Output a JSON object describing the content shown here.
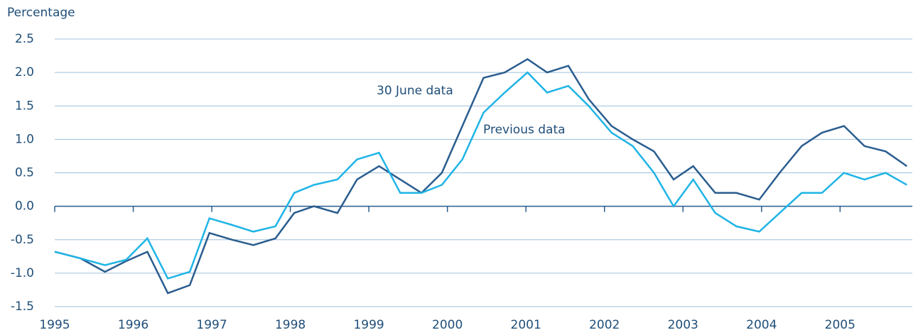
{
  "chart_data": {
    "type": "line",
    "y_label": "Percentage",
    "annotations": [
      "30 June data",
      "Previous data"
    ],
    "x": [
      1995.0,
      1995.33,
      1995.64,
      1995.91,
      1996.18,
      1996.44,
      1996.72,
      1996.97,
      1997.26,
      1997.53,
      1997.81,
      1998.05,
      1998.3,
      1998.6,
      1998.85,
      1999.13,
      1999.4,
      1999.67,
      1999.93,
      2000.19,
      2000.46,
      2000.73,
      2001.02,
      2001.27,
      2001.54,
      2001.8,
      2002.09,
      2002.36,
      2002.63,
      2002.88,
      2003.13,
      2003.41,
      2003.68,
      2003.97,
      2004.23,
      2004.51,
      2004.77,
      2005.05,
      2005.31,
      2005.58,
      2005.85
    ],
    "series": [
      {
        "name": "30 June data",
        "color": "#2a5d8f",
        "values": [
          -0.68,
          -0.78,
          -0.98,
          -0.82,
          -0.68,
          -1.3,
          -1.18,
          -0.4,
          -0.5,
          -0.58,
          -0.48,
          -0.1,
          0.0,
          -0.1,
          0.4,
          0.6,
          0.4,
          0.2,
          0.5,
          1.2,
          1.92,
          2.0,
          2.2,
          2.0,
          2.1,
          1.6,
          1.2,
          1.0,
          0.82,
          0.4,
          0.6,
          0.2,
          0.2,
          0.1,
          0.5,
          0.9,
          1.1,
          1.2,
          0.9,
          0.82,
          0.6
        ]
      },
      {
        "name": "Previous data",
        "color": "#1fb4e6",
        "values": [
          -0.68,
          -0.78,
          -0.88,
          -0.8,
          -0.48,
          -1.08,
          -0.98,
          -0.18,
          -0.28,
          -0.38,
          -0.3,
          0.2,
          0.32,
          0.4,
          0.7,
          0.8,
          0.2,
          0.2,
          0.32,
          0.7,
          1.4,
          1.7,
          2.0,
          1.7,
          1.8,
          1.5,
          1.1,
          0.9,
          0.5,
          0.0,
          0.4,
          -0.1,
          -0.3,
          -0.38,
          -0.1,
          0.2,
          0.2,
          0.5,
          0.4,
          0.5,
          0.32
        ]
      }
    ],
    "xlim": [
      1995,
      2005.92
    ],
    "xticks": [
      1995,
      1996,
      1997,
      1998,
      1999,
      2000,
      2001,
      2002,
      2003,
      2004,
      2005
    ],
    "ylim": [
      -1.5,
      2.5
    ],
    "yticks": [
      {
        "value": -1.5,
        "label": "-1.5"
      },
      {
        "value": -1.0,
        "label": "-1.0"
      },
      {
        "value": -0.5,
        "label": "-0.5"
      },
      {
        "value": 0,
        "label": "0.0"
      },
      {
        "value": 0.5,
        "label": "0.5"
      },
      {
        "value": 1.0,
        "label": "1.0"
      },
      {
        "value": 1.5,
        "label": "1.5"
      },
      {
        "value": 2.0,
        "label": "2.0"
      },
      {
        "value": 2.5,
        "label": "2.5"
      }
    ],
    "grid": true
  }
}
